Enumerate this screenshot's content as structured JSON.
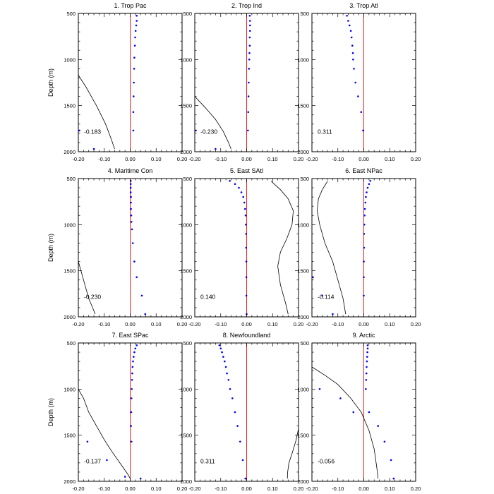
{
  "figure": {
    "ylabel": "Depth (m)",
    "colors": {
      "zero_line": "#ff0000",
      "points": "#0000ff",
      "curve": "#000000",
      "frame": "#000000"
    }
  },
  "chart_data": [
    {
      "type": "line",
      "title": "1. Trop Pac",
      "ylabel": "Depth (m)",
      "annotation": "-0.183",
      "xlim": [
        -0.2,
        0.2
      ],
      "ylim": [
        2000,
        500
      ],
      "xticks": [
        "-0.20",
        "-0.10",
        "0.00",
        "0.10",
        "0.20"
      ],
      "yticks": [
        "500",
        "1000",
        "1500",
        "2000"
      ],
      "reference_line": {
        "x": 0.0,
        "color": "#ff0000"
      },
      "series": [
        {
          "style": "dots",
          "color": "#0000ff",
          "x": [
            0.025,
            0.025,
            0.023,
            0.021,
            0.019,
            0.018,
            0.016,
            0.015,
            0.014,
            0.013,
            0.012,
            0.012,
            -0.196,
            -0.14
          ],
          "y": [
            525,
            580,
            630,
            690,
            760,
            850,
            980,
            1100,
            1250,
            1400,
            1570,
            1770,
            1770,
            1970
          ]
        },
        {
          "style": "line",
          "color": "#000000",
          "x": [
            -0.2,
            -0.17,
            -0.13,
            -0.095,
            -0.072,
            -0.06
          ],
          "y": [
            1170,
            1300,
            1500,
            1700,
            1870,
            1970
          ]
        }
      ]
    },
    {
      "type": "line",
      "title": "2. Trop Ind",
      "ylabel": "",
      "annotation": "-0.230",
      "xlim": [
        -0.2,
        0.2
      ],
      "ylim": [
        2000,
        500
      ],
      "xticks": [
        "-0.20",
        "-0.10",
        "0.00",
        "0.10",
        "0.20"
      ],
      "yticks": [
        "500",
        "1000",
        "1500",
        "2000"
      ],
      "reference_line": {
        "x": 0.0,
        "color": "#ff0000"
      },
      "series": [
        {
          "style": "dots",
          "color": "#0000ff",
          "x": [
            0.012,
            0.013,
            0.013,
            0.013,
            0.012,
            0.012,
            0.011,
            0.01,
            0.009,
            0.008,
            0.007,
            0.006,
            0.005,
            -0.196,
            -0.12
          ],
          "y": [
            525,
            580,
            630,
            690,
            760,
            850,
            930,
            1000,
            1100,
            1250,
            1400,
            1570,
            1770,
            1770,
            1970
          ]
        },
        {
          "style": "line",
          "color": "#000000",
          "x": [
            -0.2,
            -0.16,
            -0.12,
            -0.09,
            -0.07,
            -0.06
          ],
          "y": [
            1400,
            1520,
            1650,
            1780,
            1900,
            1970
          ]
        }
      ]
    },
    {
      "type": "line",
      "title": "3. Trop Atl",
      "ylabel": "",
      "annotation": "0.311",
      "xlim": [
        -0.2,
        0.2
      ],
      "ylim": [
        2000,
        500
      ],
      "xticks": [
        "-0.20",
        "-0.10",
        "0.00",
        "0.10",
        "0.20"
      ],
      "yticks": [
        "500",
        "1000",
        "1500",
        "2000"
      ],
      "reference_line": {
        "x": 0.0,
        "color": "#ff0000"
      },
      "series": [
        {
          "style": "dots",
          "color": "#0000ff",
          "x": [
            -0.065,
            -0.06,
            -0.055,
            -0.05,
            -0.047,
            -0.044,
            -0.042,
            -0.041,
            -0.038,
            -0.032,
            -0.022,
            -0.01,
            -0.003
          ],
          "y": [
            525,
            580,
            630,
            690,
            760,
            850,
            930,
            1000,
            1100,
            1250,
            1400,
            1570,
            1770
          ]
        }
      ]
    },
    {
      "type": "line",
      "title": "4. Maritime Con",
      "ylabel": "Depth (m)",
      "annotation": "-0.230",
      "xlim": [
        -0.2,
        0.2
      ],
      "ylim": [
        2000,
        500
      ],
      "xticks": [
        "-0.20",
        "-0.10",
        "0.00",
        "0.10",
        "0.20"
      ],
      "yticks": [
        "500",
        "1000",
        "1500",
        "2000"
      ],
      "reference_line": {
        "x": 0.0,
        "color": "#ff0000"
      },
      "series": [
        {
          "style": "dots",
          "color": "#0000ff",
          "x": [
            0.002,
            0.002,
            0.002,
            0.002,
            0.003,
            0.003,
            0.003,
            0.004,
            0.005,
            0.007,
            0.01,
            0.016,
            0.025,
            0.045,
            0.058
          ],
          "y": [
            525,
            560,
            600,
            650,
            700,
            760,
            830,
            900,
            970,
            1050,
            1200,
            1400,
            1570,
            1770,
            1970
          ]
        },
        {
          "style": "line",
          "color": "#000000",
          "x": [
            -0.2,
            -0.18,
            -0.16,
            -0.145,
            -0.135
          ],
          "y": [
            1400,
            1600,
            1800,
            1900,
            1970
          ]
        }
      ]
    },
    {
      "type": "line",
      "title": "5. East SAtl",
      "ylabel": "",
      "annotation": "0.140",
      "xlim": [
        -0.2,
        0.2
      ],
      "ylim": [
        2000,
        500
      ],
      "xticks": [
        "-0.20",
        "-0.10",
        "0.00",
        "0.10",
        "0.20"
      ],
      "yticks": [
        "500",
        "1000",
        "1500",
        "2000"
      ],
      "reference_line": {
        "x": 0.0,
        "color": "#ff0000"
      },
      "series": [
        {
          "style": "dots",
          "color": "#0000ff",
          "x": [
            -0.065,
            -0.045,
            -0.03,
            -0.02,
            -0.013,
            -0.009,
            -0.006,
            -0.004,
            -0.003,
            -0.002,
            -0.002,
            -0.001,
            -0.001,
            -0.001
          ],
          "y": [
            525,
            560,
            600,
            650,
            700,
            760,
            830,
            900,
            1000,
            1100,
            1250,
            1400,
            1570,
            1770
          ]
        },
        {
          "style": "dots",
          "color": "#0000ff",
          "x": [
            0.0
          ],
          "y": [
            1970
          ]
        },
        {
          "style": "line",
          "color": "#000000",
          "x": [
            0.095,
            0.13,
            0.16,
            0.18,
            0.175,
            0.155,
            0.13,
            0.12,
            0.13,
            0.15,
            0.16
          ],
          "y": [
            530,
            620,
            720,
            850,
            1000,
            1150,
            1300,
            1450,
            1650,
            1850,
            1970
          ]
        }
      ]
    },
    {
      "type": "line",
      "title": "6. East NPac",
      "ylabel": "",
      "annotation": "-0.114",
      "xlim": [
        -0.2,
        0.2
      ],
      "ylim": [
        2000,
        500
      ],
      "xticks": [
        "-0.20",
        "-0.10",
        "0.00",
        "0.10",
        "0.20"
      ],
      "yticks": [
        "500",
        "1000",
        "1500",
        "2000"
      ],
      "reference_line": {
        "x": 0.0,
        "color": "#ff0000"
      },
      "series": [
        {
          "style": "dots",
          "color": "#0000ff",
          "x": [
            0.025,
            0.02,
            0.015,
            0.011,
            0.008,
            0.006,
            0.004,
            0.003,
            0.002,
            0.001,
            0.001,
            0.0,
            0.0,
            0.0,
            -0.196,
            -0.16,
            -0.12
          ],
          "y": [
            525,
            560,
            600,
            650,
            700,
            760,
            830,
            900,
            1000,
            1100,
            1250,
            1400,
            1570,
            1770,
            1570,
            1770,
            1970
          ]
        },
        {
          "style": "line",
          "color": "#000000",
          "x": [
            -0.14,
            -0.16,
            -0.175,
            -0.18,
            -0.17,
            -0.15,
            -0.12,
            -0.1,
            -0.08,
            -0.07
          ],
          "y": [
            530,
            620,
            720,
            850,
            1000,
            1200,
            1400,
            1600,
            1800,
            1970
          ]
        }
      ]
    },
    {
      "type": "line",
      "title": "7. East SPac",
      "ylabel": "Depth (m)",
      "annotation": "-0.137",
      "xlim": [
        -0.2,
        0.2
      ],
      "ylim": [
        2000,
        500
      ],
      "xticks": [
        "-0.20",
        "-0.10",
        "0.00",
        "0.10",
        "0.20"
      ],
      "yticks": [
        "500",
        "1000",
        "1500",
        "2000"
      ],
      "reference_line": {
        "x": 0.0,
        "color": "#ff0000"
      },
      "series": [
        {
          "style": "dots",
          "color": "#0000ff",
          "x": [
            0.025,
            0.02,
            0.016,
            0.013,
            0.011,
            0.009,
            0.008,
            0.007,
            0.006,
            0.005,
            0.004,
            0.003,
            0.005,
            -0.165,
            -0.09,
            0.04,
            -0.02
          ],
          "y": [
            525,
            560,
            600,
            650,
            700,
            760,
            830,
            900,
            1000,
            1100,
            1250,
            1400,
            1570,
            1570,
            1770,
            1970,
            1950
          ]
        },
        {
          "style": "line",
          "color": "#000000",
          "x": [
            -0.2,
            -0.18,
            -0.16,
            -0.13,
            -0.1,
            -0.07,
            -0.04,
            -0.01,
            0.0
          ],
          "y": [
            1000,
            1100,
            1250,
            1400,
            1550,
            1680,
            1800,
            1920,
            1970
          ]
        }
      ]
    },
    {
      "type": "line",
      "title": "8. Newfoundland",
      "ylabel": "",
      "annotation": "0.311",
      "xlim": [
        -0.2,
        0.2
      ],
      "ylim": [
        2000,
        500
      ],
      "xticks": [
        "-0.20",
        "-0.10",
        "0.00",
        "0.10",
        "0.20"
      ],
      "yticks": [
        "500",
        "1000",
        "1500",
        "2000"
      ],
      "reference_line": {
        "x": 0.0,
        "color": "#ff0000"
      },
      "series": [
        {
          "style": "dots",
          "color": "#0000ff",
          "x": [
            -0.105,
            -0.1,
            -0.095,
            -0.09,
            -0.085,
            -0.08,
            -0.076,
            -0.07,
            -0.064,
            -0.055,
            -0.045,
            -0.035,
            -0.025,
            -0.015,
            -0.005
          ],
          "y": [
            525,
            560,
            600,
            650,
            700,
            760,
            830,
            900,
            1000,
            1100,
            1250,
            1400,
            1570,
            1770,
            1970
          ]
        },
        {
          "style": "line",
          "color": "#000000",
          "x": [
            0.2,
            0.19,
            0.175,
            0.163,
            0.158,
            0.157
          ],
          "y": [
            1430,
            1560,
            1700,
            1800,
            1900,
            1970
          ]
        }
      ]
    },
    {
      "type": "line",
      "title": "9. Arctic",
      "ylabel": "",
      "annotation": "-0.056",
      "xlim": [
        -0.2,
        0.2
      ],
      "ylim": [
        2000,
        500
      ],
      "xticks": [
        "-0.20",
        "-0.10",
        "0.00",
        "0.10",
        "0.20"
      ],
      "yticks": [
        "500",
        "1000",
        "1500",
        "2000"
      ],
      "reference_line": {
        "x": 0.0,
        "color": "#ff0000"
      },
      "series": [
        {
          "style": "dots",
          "color": "#0000ff",
          "x": [
            0.015,
            0.015,
            0.014,
            0.013,
            0.012,
            0.011,
            0.01,
            0.009,
            0.008,
            -0.17,
            -0.09,
            -0.04,
            0.02,
            0.055,
            0.08,
            0.105,
            0.115
          ],
          "y": [
            525,
            560,
            600,
            650,
            700,
            760,
            830,
            900,
            1000,
            1000,
            1100,
            1250,
            1250,
            1400,
            1570,
            1770,
            1970
          ]
        },
        {
          "style": "line",
          "color": "#000000",
          "x": [
            -0.2,
            -0.15,
            -0.1,
            -0.05,
            -0.01,
            0.02,
            0.04,
            0.05,
            0.055
          ],
          "y": [
            760,
            850,
            950,
            1100,
            1250,
            1450,
            1650,
            1850,
            1970
          ]
        }
      ]
    }
  ]
}
